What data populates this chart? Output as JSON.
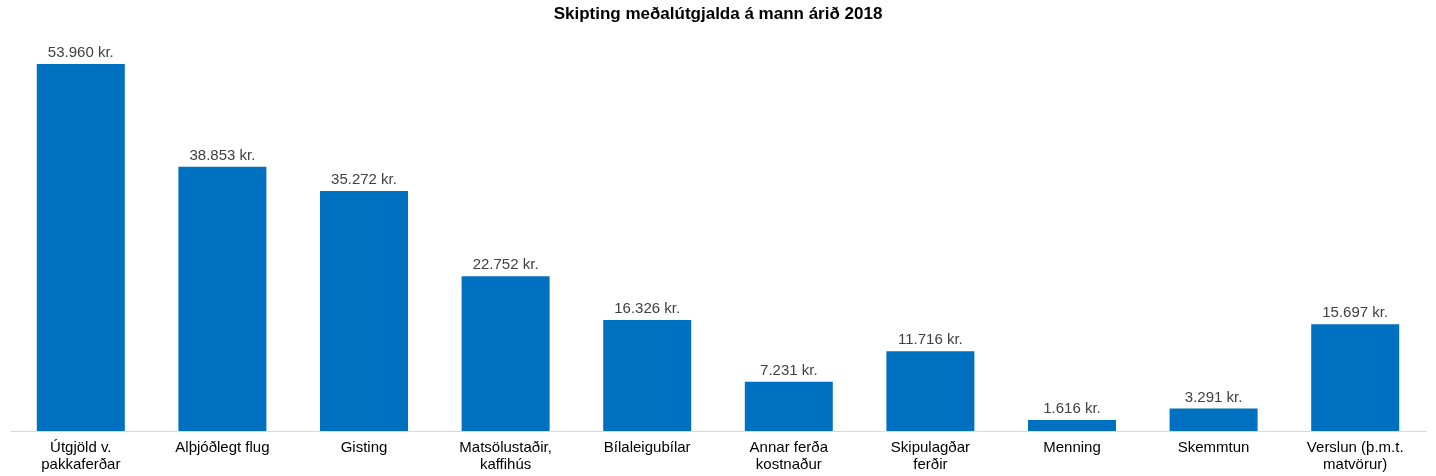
{
  "chart_data": {
    "type": "bar",
    "title": "Skipting meðalútgjalda á mann árið 2018",
    "categories": [
      "Útgjöld v. pakkaferðar",
      "Alþjóðlegt flug",
      "Gisting",
      "Matsölustaðir, kaffihús",
      "Bílaleigubílar",
      "Annar ferða kostnaður",
      "Skipulagðar ferðir",
      "Menning",
      "Skemmtun",
      "Verslun (þ.m.t. matvörur)"
    ],
    "values": [
      53960,
      38853,
      35272,
      22752,
      16326,
      7231,
      11716,
      1616,
      3291,
      15697
    ],
    "value_labels": [
      "53.960 kr.",
      "38.853 kr.",
      "35.272 kr.",
      "22.752 kr.",
      "16.326 kr.",
      "7.231 kr.",
      "11.716 kr.",
      "1.616 kr.",
      "3.291 kr.",
      "15.697 kr."
    ],
    "color": "#0070c0",
    "grid": false
  }
}
